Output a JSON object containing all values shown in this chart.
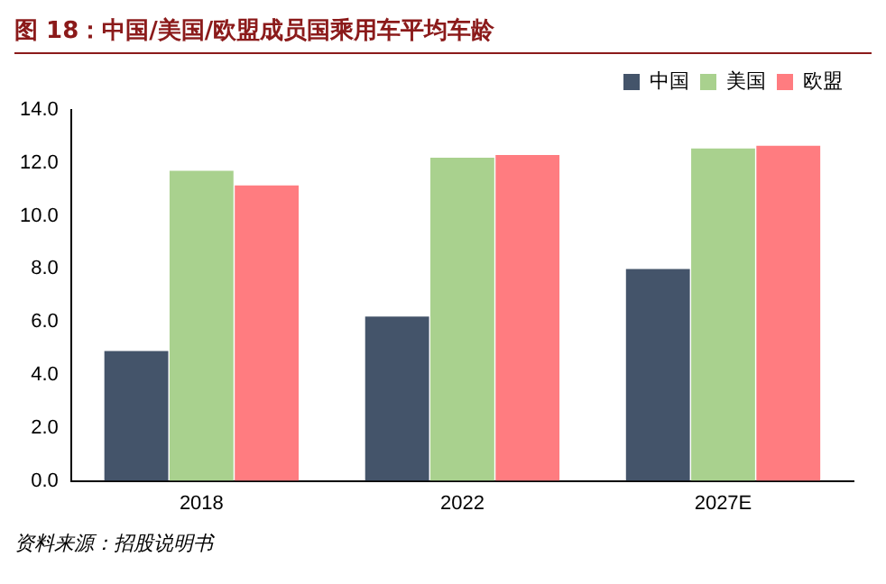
{
  "chart_data": {
    "type": "bar",
    "title": "图 18：中国/美国/欧盟成员国乘用车平均车龄",
    "categories": [
      "2018",
      "2022",
      "2027E"
    ],
    "series": [
      {
        "name": "中国",
        "color": "#44546a",
        "values": [
          4.9,
          6.2,
          8.0
        ]
      },
      {
        "name": "美国",
        "color": "#a9d18e",
        "values": [
          11.7,
          12.2,
          12.55
        ]
      },
      {
        "name": "欧盟",
        "color": "#ff7c80",
        "values": [
          11.15,
          12.3,
          12.65
        ]
      }
    ],
    "ylim": [
      0,
      14
    ],
    "yticks": [
      {
        "value": 0,
        "label": "0.0"
      },
      {
        "value": 2,
        "label": "2.0"
      },
      {
        "value": 4,
        "label": "4.0"
      },
      {
        "value": 6,
        "label": "6.0"
      },
      {
        "value": 8,
        "label": "8.0"
      },
      {
        "value": 10,
        "label": "10.0"
      },
      {
        "value": 12,
        "label": "12.0"
      },
      {
        "value": 14,
        "label": "14.0"
      }
    ],
    "grid": false,
    "legend": "top right",
    "annotations": [
      "资料来源：招股说明书"
    ]
  }
}
